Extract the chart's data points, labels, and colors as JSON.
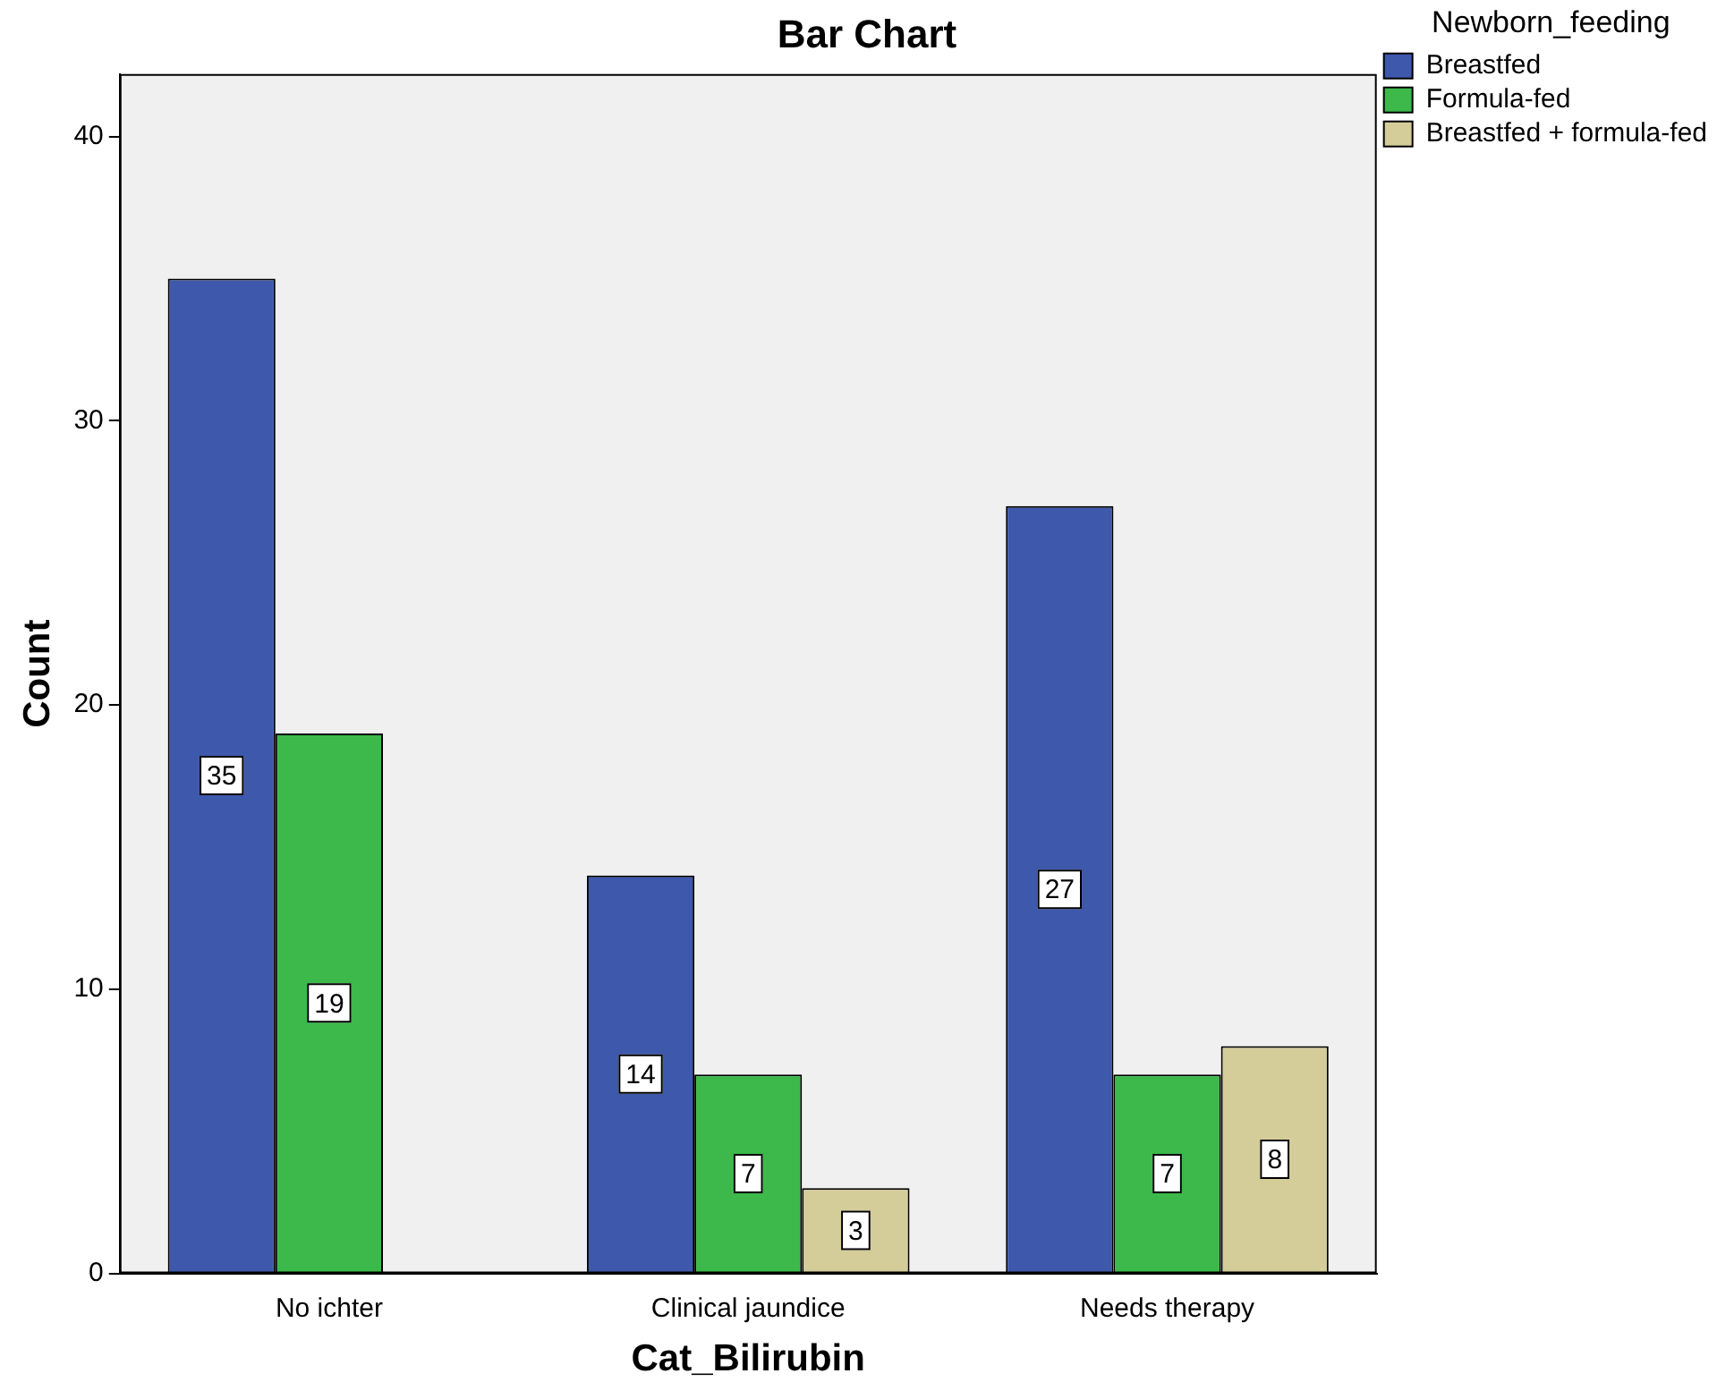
{
  "chart_data": {
    "type": "bar",
    "title": "Bar Chart",
    "xlabel": "Cat_Bilirubin",
    "ylabel": "Count",
    "legend_title": "Newborn_feeding",
    "legend": "top right",
    "categories": [
      "No ichter",
      "Clinical jaundice",
      "Needs therapy"
    ],
    "series": [
      {
        "name": "Breastfed",
        "color": "#3e58ac",
        "values": [
          35,
          14,
          27
        ]
      },
      {
        "name": "Formula-fed",
        "color": "#3cb94a",
        "values": [
          19,
          7,
          7
        ]
      },
      {
        "name": "Breastfed + formula-fed",
        "color": "#d4cc99",
        "values": [
          null,
          3,
          8
        ]
      }
    ],
    "ylim": [
      0,
      42.2
    ],
    "yticks": [
      0,
      10,
      20,
      30,
      40
    ],
    "data_labels": true
  }
}
